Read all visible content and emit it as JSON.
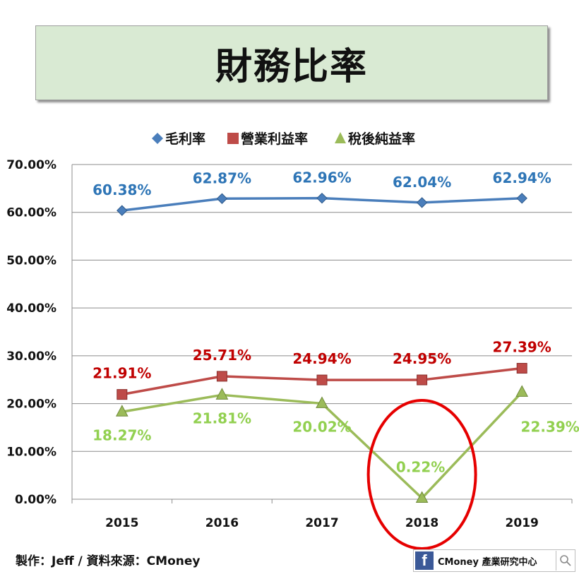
{
  "header": {
    "title": "財務比率"
  },
  "chart_data": {
    "type": "line",
    "categories": [
      "2015",
      "2016",
      "2017",
      "2018",
      "2019"
    ],
    "ylim": [
      0,
      70
    ],
    "yticks": [
      "0.00%",
      "10.00%",
      "20.00%",
      "30.00%",
      "40.00%",
      "50.00%",
      "60.00%",
      "70.00%"
    ],
    "grid": true,
    "legend_position": "top",
    "series": [
      {
        "name": "毛利率",
        "values": [
          60.38,
          62.87,
          62.96,
          62.04,
          62.94
        ],
        "labels": [
          "60.38%",
          "62.87%",
          "62.96%",
          "62.04%",
          "62.94%"
        ],
        "marker": "diamond",
        "color": "#4a7ebb",
        "label_color": "#2e75b6"
      },
      {
        "name": "營業利益率",
        "values": [
          21.91,
          25.71,
          24.94,
          24.95,
          27.39
        ],
        "labels": [
          "21.91%",
          "25.71%",
          "24.94%",
          "24.95%",
          "27.39%"
        ],
        "marker": "square",
        "color": "#be4b48",
        "label_color": "#c00000"
      },
      {
        "name": "稅後純益率",
        "values": [
          18.27,
          21.81,
          20.02,
          0.22,
          22.39
        ],
        "labels": [
          "18.27%",
          "21.81%",
          "20.02%",
          "0.22%",
          "22.39%"
        ],
        "marker": "triangle",
        "color": "#9bbb59",
        "label_color": "#92d050"
      }
    ],
    "annotation": {
      "type": "circle",
      "category": "2018",
      "color": "#e60000"
    }
  },
  "footer": {
    "credit": "製作：Jeff / 資料來源：CMoney",
    "brand_icon": "f",
    "brand_text": "CMoney 產業研究中心"
  }
}
